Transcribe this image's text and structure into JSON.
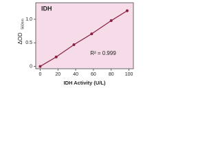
{
  "chart_data": {
    "type": "line",
    "inset_label": "IDH",
    "x_label": "IDH Activity (U/L)",
    "y_label": "ΔOD",
    "y_label_sub": "560nm",
    "annotation": "R² = 0.999",
    "x": [
      0,
      18,
      38,
      58,
      80,
      98
    ],
    "series": [
      {
        "color": "#8b1f3f",
        "values": [
          0,
          0.2,
          0.46,
          0.69,
          0.97,
          1.18
        ]
      }
    ],
    "xlim": [
      -5,
      105
    ],
    "xticks": [
      0,
      20,
      40,
      60,
      80,
      100
    ],
    "ylim": [
      -0.05,
      1.35
    ],
    "yticks": [
      0,
      0.5,
      {
        "value": 1,
        "label": "1.0"
      }
    ],
    "background": "#f6dce9"
  }
}
